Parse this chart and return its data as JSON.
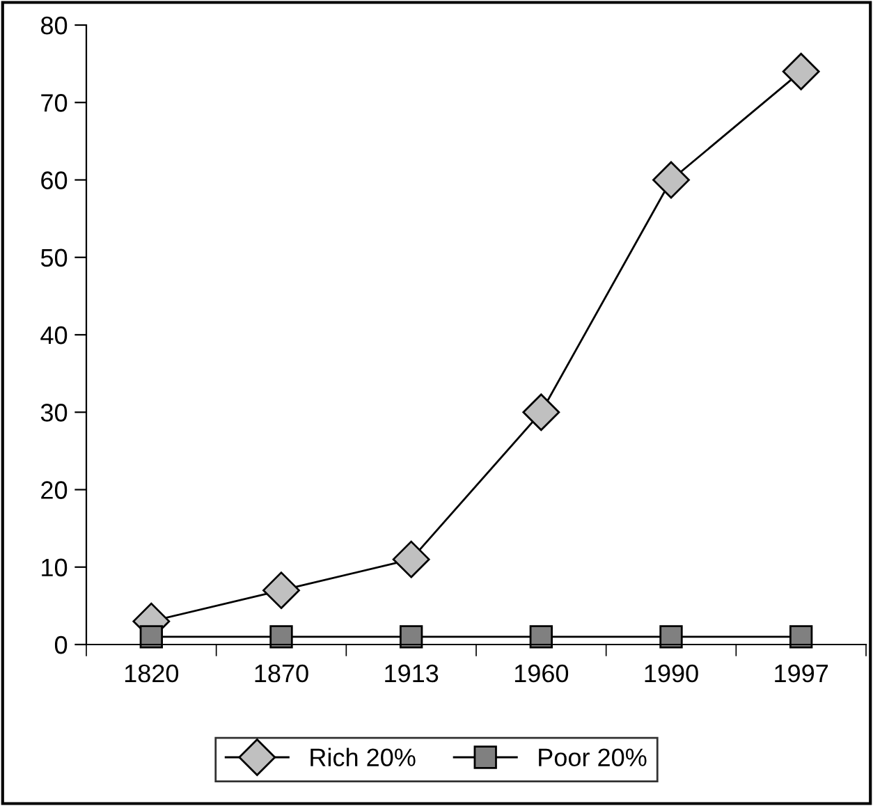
{
  "chart_data": {
    "type": "line",
    "categories": [
      "1820",
      "1870",
      "1913",
      "1960",
      "1990",
      "1997"
    ],
    "series": [
      {
        "name": "Rich 20%",
        "color": "#c0c0c0",
        "marker": "diamond",
        "values": [
          3,
          7,
          11,
          30,
          60,
          74
        ]
      },
      {
        "name": "Poor 20%",
        "color": "#808080",
        "marker": "square",
        "values": [
          1,
          1,
          1,
          1,
          1,
          1
        ]
      }
    ],
    "ylim": [
      0,
      80
    ],
    "yticks": [
      0,
      10,
      20,
      30,
      40,
      50,
      60,
      70,
      80
    ],
    "grid": false,
    "legend": "bottom",
    "line_style": "solid"
  }
}
